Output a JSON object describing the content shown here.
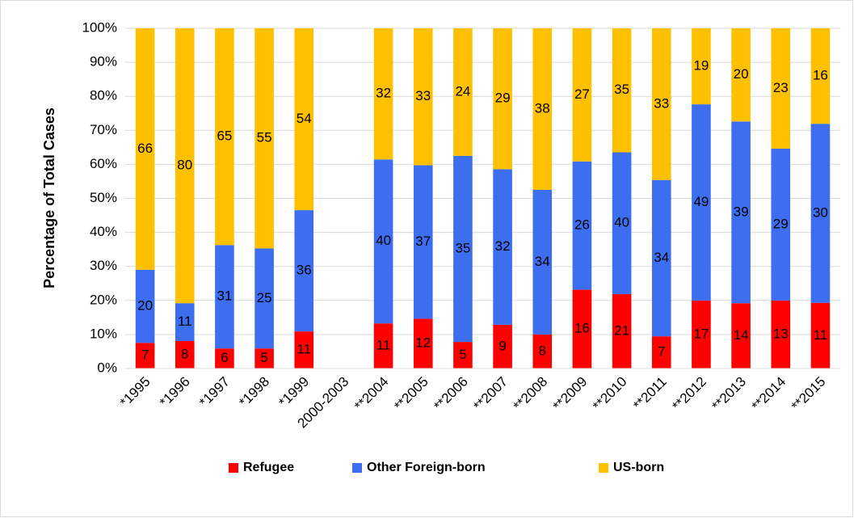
{
  "chart_data": {
    "type": "bar",
    "stacked": "percent",
    "y_label": "Percentage of Total Cases",
    "categories": [
      "*1995",
      "*1996",
      "*1997",
      "*1998",
      "*1999",
      "2000-2003",
      "**2004",
      "**2005",
      "**2006",
      "**2007",
      "**2008",
      "**2009",
      "**2010",
      "**2011",
      "**2012",
      "**2013",
      "**2014",
      "**2015"
    ],
    "series": [
      {
        "name": "Refugee",
        "color": "#ff0000",
        "values": [
          7,
          8,
          6,
          5,
          11,
          null,
          11,
          12,
          5,
          9,
          8,
          16,
          21,
          7,
          17,
          14,
          13,
          11
        ]
      },
      {
        "name": "Other Foreign-born",
        "color": "#3d6ef0",
        "values": [
          20,
          11,
          31,
          25,
          36,
          null,
          40,
          37,
          35,
          32,
          34,
          26,
          40,
          34,
          49,
          39,
          29,
          30
        ]
      },
      {
        "name": "US-born",
        "color": "#ffc000",
        "values": [
          66,
          80,
          65,
          55,
          54,
          null,
          32,
          33,
          24,
          29,
          38,
          27,
          35,
          33,
          19,
          20,
          23,
          16
        ]
      }
    ],
    "ylim": [
      0,
      100
    ],
    "yticks": [
      {
        "value": 0,
        "label": "0%"
      },
      {
        "value": 10,
        "label": "10%"
      },
      {
        "value": 20,
        "label": "20%"
      },
      {
        "value": 30,
        "label": "30%"
      },
      {
        "value": 40,
        "label": "40%"
      },
      {
        "value": 50,
        "label": "50%"
      },
      {
        "value": 60,
        "label": "60%"
      },
      {
        "value": 70,
        "label": "70%"
      },
      {
        "value": 80,
        "label": "80%"
      },
      {
        "value": 90,
        "label": "90%"
      },
      {
        "value": 100,
        "label": "100%"
      }
    ],
    "grid": true,
    "legend": "bottom"
  }
}
